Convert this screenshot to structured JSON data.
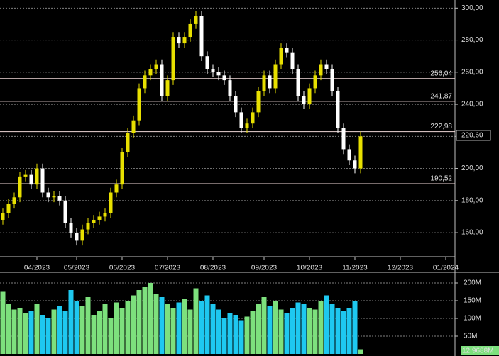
{
  "chart_data": [
    {
      "type": "candlestick",
      "categories": [
        null,
        null,
        null,
        null,
        null,
        null,
        "04/2023",
        null,
        null,
        null,
        null,
        null,
        null,
        "05/2023",
        null,
        null,
        null,
        null,
        null,
        null,
        null,
        "06/2023",
        null,
        null,
        null,
        null,
        null,
        null,
        null,
        "07/2023",
        null,
        null,
        null,
        null,
        null,
        null,
        null,
        "08/2023",
        null,
        null,
        null,
        null,
        null,
        null,
        null,
        null,
        "09/2023",
        null,
        null,
        null,
        null,
        null,
        null,
        null,
        "10/2023",
        null,
        null,
        null,
        null,
        null,
        null,
        null,
        "11/2023",
        null,
        null,
        null,
        null,
        null,
        null,
        null,
        "12/2023",
        null,
        null,
        null,
        null,
        null,
        null,
        null,
        "01/2024",
        null
      ],
      "open": [
        168,
        172,
        178,
        182,
        195,
        196,
        190,
        200,
        185,
        182,
        183,
        180,
        166,
        160,
        155,
        162,
        166,
        168,
        170,
        172,
        185,
        190,
        210,
        222,
        230,
        250,
        258,
        262,
        265,
        245,
        255,
        282,
        278,
        282,
        290,
        295,
        270,
        262,
        260,
        258,
        255,
        245,
        235,
        225,
        228,
        235,
        248,
        258,
        250,
        265,
        275,
        272,
        262,
        245,
        240,
        250,
        258,
        265,
        262,
        248,
        225,
        212,
        205,
        200,
        null,
        null,
        null,
        null,
        null,
        null,
        null,
        null,
        null,
        null,
        null,
        null,
        null,
        null,
        null,
        null
      ],
      "high": [
        175,
        181,
        185,
        198,
        199,
        199,
        203,
        203,
        188,
        186,
        186,
        183,
        169,
        163,
        165,
        169,
        171,
        173,
        175,
        188,
        193,
        213,
        225,
        233,
        253,
        261,
        265,
        268,
        268,
        258,
        285,
        285,
        285,
        293,
        298,
        298,
        273,
        265,
        263,
        261,
        258,
        248,
        238,
        231,
        238,
        251,
        261,
        261,
        268,
        278,
        278,
        275,
        265,
        248,
        253,
        261,
        268,
        268,
        265,
        251,
        228,
        215,
        208,
        223,
        null,
        null,
        null,
        null,
        null,
        null,
        null,
        null,
        null,
        null,
        null,
        null,
        null,
        null,
        null,
        null
      ],
      "low": [
        165,
        169,
        175,
        179,
        192,
        187,
        187,
        182,
        179,
        179,
        177,
        163,
        157,
        152,
        152,
        159,
        163,
        165,
        167,
        169,
        182,
        187,
        207,
        219,
        227,
        247,
        255,
        259,
        242,
        242,
        252,
        275,
        275,
        279,
        287,
        267,
        259,
        257,
        255,
        252,
        242,
        232,
        222,
        222,
        225,
        232,
        245,
        247,
        247,
        262,
        269,
        259,
        242,
        237,
        237,
        247,
        255,
        259,
        245,
        222,
        209,
        202,
        197,
        197,
        null,
        null,
        null,
        null,
        null,
        null,
        null,
        null,
        null,
        null,
        null,
        null,
        null,
        null,
        null,
        null
      ],
      "close": [
        172,
        178,
        182,
        195,
        196,
        190,
        200,
        185,
        182,
        183,
        180,
        166,
        160,
        155,
        162,
        166,
        168,
        170,
        172,
        185,
        190,
        210,
        222,
        230,
        250,
        258,
        262,
        265,
        245,
        255,
        282,
        278,
        282,
        290,
        295,
        270,
        262,
        260,
        258,
        255,
        245,
        235,
        225,
        228,
        235,
        248,
        258,
        250,
        265,
        275,
        272,
        262,
        245,
        240,
        250,
        258,
        265,
        262,
        248,
        225,
        212,
        205,
        200,
        220,
        null,
        null,
        null,
        null,
        null,
        null,
        null,
        null,
        null,
        null,
        null,
        null,
        null,
        null,
        null,
        null
      ],
      "up_color": "#e8e000",
      "down_color": "#ffffff",
      "ylim": [
        145,
        305
      ],
      "yticks": [
        {
          "value": 160,
          "label": "160,00"
        },
        {
          "value": 180,
          "label": "180,00"
        },
        {
          "value": 200,
          "label": "200,00"
        },
        {
          "value": 220,
          "label": "220,00"
        },
        {
          "value": 240,
          "label": "240,00"
        },
        {
          "value": 260,
          "label": "260,00"
        },
        {
          "value": 280,
          "label": "280,00"
        },
        {
          "value": 300,
          "label": "300,00"
        }
      ],
      "levels": [
        {
          "value": 256.04,
          "label": "256,04"
        },
        {
          "value": 241.87,
          "label": "241,87"
        },
        {
          "value": 222.98,
          "label": "222,98"
        },
        {
          "value": 190.52,
          "label": "190,52"
        }
      ],
      "last_price": {
        "value": 220.6,
        "label": "220,60"
      },
      "grid": true
    },
    {
      "type": "volume",
      "values": [
        175,
        140,
        125,
        130,
        115,
        120,
        140,
        110,
        100,
        125,
        135,
        120,
        180,
        150,
        135,
        160,
        110,
        120,
        140,
        100,
        145,
        130,
        150,
        165,
        180,
        190,
        200,
        170,
        160,
        140,
        130,
        145,
        155,
        125,
        185,
        150,
        165,
        140,
        125,
        100,
        115,
        110,
        95,
        105,
        120,
        140,
        160,
        135,
        150,
        125,
        115,
        130,
        145,
        140,
        130,
        125,
        150,
        165,
        140,
        130,
        120,
        130,
        150,
        12.9688
      ],
      "up_color": "#7de07d",
      "down_color": "#1ec8f0",
      "ylim": [
        0,
        230
      ],
      "yticks": [
        {
          "value": 50,
          "label": "50M"
        },
        {
          "value": 100,
          "label": "100M"
        },
        {
          "value": 150,
          "label": "150M"
        },
        {
          "value": 200,
          "label": "200M"
        }
      ],
      "last_volume": {
        "value": 12.9688,
        "label": "12,9688M"
      },
      "grid": true
    }
  ]
}
